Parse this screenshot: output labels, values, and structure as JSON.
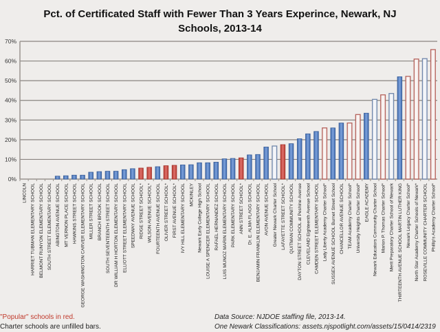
{
  "chart_data": {
    "type": "bar",
    "title": "Pct. of Certificated Staff with Fewer Than 3 Years Experince, Newark, NJ Schools, 2013-14",
    "title_lines": [
      "Pct. of Certificated Staff with Fewer Than 3 Years Experince, Newark, NJ",
      "Schools, 2013-14"
    ],
    "xlabel": "",
    "ylabel": "",
    "ylim": [
      0,
      70
    ],
    "yticks": [
      "0%",
      "10%",
      "20%",
      "30%",
      "40%",
      "50%",
      "60%",
      "70%"
    ],
    "ytick_values": [
      0,
      10,
      20,
      30,
      40,
      50,
      60,
      70
    ],
    "grid": true,
    "colors": {
      "regular": "#4f7cc0",
      "popular": "#c94a40",
      "regular_edge": "#3a5f99",
      "popular_edge": "#a5342c"
    },
    "categories": [
      "LINCOLN",
      "HARRIET TUBMAN ELEMENTARY SCHOOL",
      "BELMONT RUNYON ELEMENTARY SCHOOL",
      "SOUTH STREET ELEMENTARY SCHOOL",
      "ABINGTON AVENUE SCHOOL",
      "MT VERNON PLACE SCHOOL",
      "HAWKINS STREET SCHOOL",
      "GEORGE WASHINGTON CARVER ELEMENTARY SCHOOL",
      "MILLER STREET SCHOOL",
      "BRANCH BROOK SCHOOL",
      "SOUTH SEVENTEENTH STREET SCHOOL",
      "DR WILLIAM H HORTON ELEMENTARY SCHOOL",
      "ELLIOTT STREET ELEMENTARY SCHOOL",
      "SPEEDWAY AVENUE SCHOOL",
      "RIDGE STREET SCHOOL*",
      "WILSON AVENUE SCHOOL*",
      "FOURTEENTH AVENUE SCHOOL",
      "OLIVER STREET SCHOOL*",
      "FIRST AVENUE SCHOOL*",
      "IVY HILL ELEMENTARY SCHOOL",
      "MCKINLEY",
      "Newark Early College High School",
      "LOUISE A SPENCER ELEMENTARY SCHOOL",
      "RAFAEL HERNANDEZ SCHOOL",
      "LUIS MUNOZ MARIN ELEMENTARY SCHOOL",
      "PARK ELEMENTARY SCHOOL",
      "ANN STREET SCHOOL*",
      "Dr. E. ALMA FLAGG SCHOOL",
      "BENJAMIN FRANKLIN ELEMENTARY SCHOOL",
      "AVON AVENUE SCHOOL",
      "Greater Newark Charter School",
      "LAFAYETTE STREET SCHOOL*",
      "QUITMAN COMMUNITY SCHOOL",
      "DAYTON STREET SCHOOL at Peshine Avenue",
      "CLEVELAND Eighteenth Avenue School",
      "CAMDEN STREET ELEMENTARY SCHOOL",
      "Lady Liberty Academy Charter School*",
      "SUSSEX AVENUE SCHOOL Burnet Street School",
      "CHANCELLOR AVENUE SCHOOL",
      "TEAM Academy Charter School*",
      "University Heights Charter School*",
      "EAGLE ACADEMY",
      "Newark Educators Community Charter School",
      "Marion P. Thomas Charter School*",
      "Merit Preparatory Charter School of Newark",
      "THIRTEENTH AVENUE SCHOOL MARTIN LUTHER KING",
      "Newark Legacy Charter School*",
      "North Star Academy Charter Schools of Newark*",
      "ROSEVILLE COMMUNITY CHARTER SCHOOL",
      "Phillip's Academy Charter School*"
    ],
    "values": [
      0,
      0,
      0,
      0,
      1.5,
      1.7,
      2.0,
      2.0,
      3.5,
      3.8,
      4.0,
      4.0,
      4.8,
      5.3,
      5.6,
      6.0,
      6.3,
      6.8,
      7.0,
      7.2,
      7.3,
      8.3,
      8.3,
      8.6,
      10.3,
      10.5,
      10.8,
      12.3,
      12.5,
      16.3,
      16.8,
      17.5,
      18.0,
      20.5,
      23.0,
      24.2,
      26.0,
      26.0,
      28.5,
      28.5,
      32.8,
      33.5,
      40.5,
      42.8,
      43.5,
      52.0,
      52.2,
      61.0,
      61.2,
      65.8
    ],
    "popular": [
      false,
      false,
      false,
      false,
      false,
      false,
      false,
      false,
      false,
      false,
      false,
      false,
      false,
      false,
      true,
      true,
      false,
      true,
      true,
      false,
      false,
      false,
      false,
      false,
      false,
      false,
      true,
      false,
      false,
      false,
      false,
      true,
      false,
      false,
      false,
      false,
      true,
      false,
      false,
      true,
      true,
      false,
      false,
      true,
      false,
      false,
      true,
      true,
      false,
      true
    ],
    "charter": [
      false,
      false,
      false,
      false,
      false,
      false,
      false,
      false,
      false,
      false,
      false,
      false,
      false,
      false,
      false,
      false,
      false,
      false,
      false,
      false,
      false,
      false,
      false,
      false,
      false,
      false,
      false,
      false,
      false,
      false,
      true,
      false,
      false,
      false,
      false,
      false,
      true,
      false,
      false,
      true,
      true,
      false,
      true,
      true,
      true,
      false,
      true,
      true,
      true,
      true
    ],
    "legend_notes": [
      "\"Popular\" schools in red.",
      "Charter schools are unfilled bars."
    ],
    "source_notes": [
      "Data Source: NJDOE staffing file, 2013-14.",
      "One Newark Classifications: assets.njspotlight.com/assets/15/0414/2319"
    ]
  }
}
